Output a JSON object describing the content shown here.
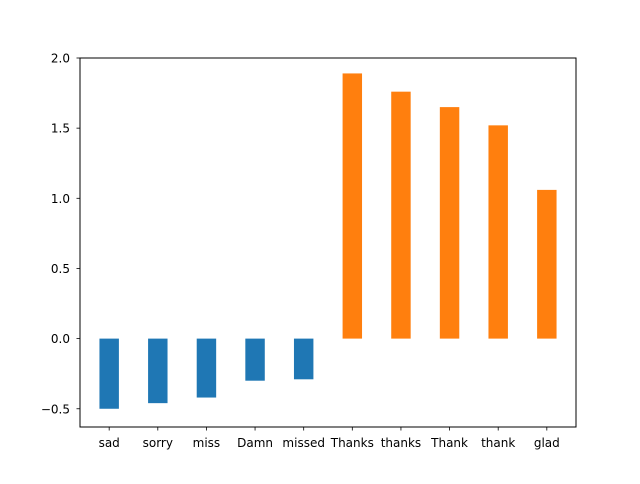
{
  "chart_data": {
    "type": "bar",
    "title": "",
    "xlabel": "",
    "ylabel": "",
    "categories": [
      "sad",
      "sorry",
      "miss",
      "Damn",
      "missed",
      "Thanks",
      "thanks",
      "Thank",
      "thank",
      "glad"
    ],
    "values": [
      -0.5,
      -0.46,
      -0.42,
      -0.3,
      -0.29,
      1.89,
      1.76,
      1.65,
      1.52,
      1.06
    ],
    "bar_colors": [
      "#1f77b4",
      "#1f77b4",
      "#1f77b4",
      "#1f77b4",
      "#1f77b4",
      "#ff7f0e",
      "#ff7f0e",
      "#ff7f0e",
      "#ff7f0e",
      "#ff7f0e"
    ],
    "ylim": [
      -0.63,
      2.0
    ],
    "yticks": [
      -0.5,
      0.0,
      0.5,
      1.0,
      1.5,
      2.0
    ],
    "ytick_labels": [
      "−0.5",
      "0.0",
      "0.5",
      "1.0",
      "1.5",
      "2.0"
    ],
    "grid": false,
    "legend": "none"
  }
}
